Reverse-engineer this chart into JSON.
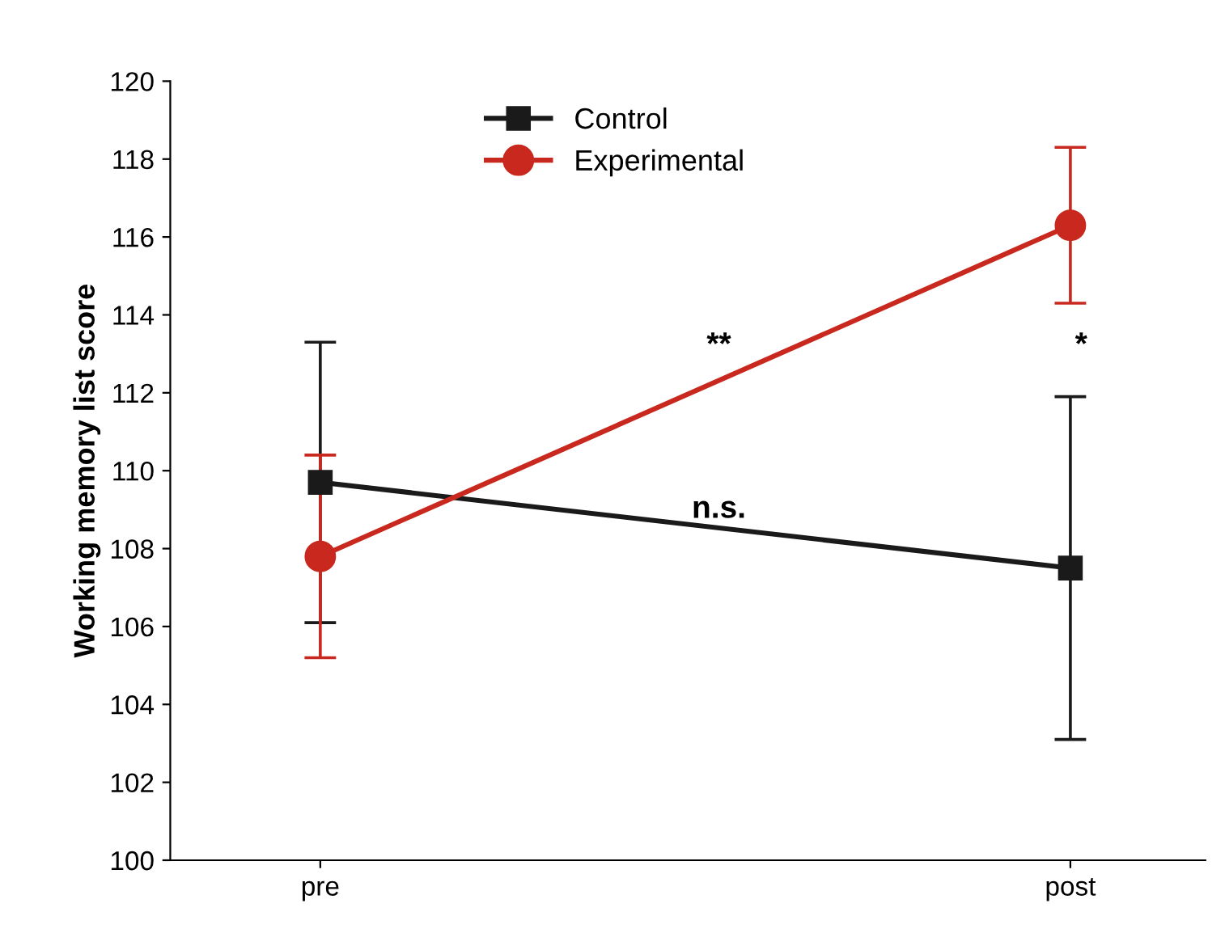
{
  "chart_data": {
    "type": "line",
    "ylabel": "Working memory list score",
    "categories": [
      "pre",
      "post"
    ],
    "series": [
      {
        "name": "Control",
        "color": "#1a1a1a",
        "marker": "square",
        "values": [
          109.7,
          107.5
        ],
        "errors": [
          3.6,
          4.4
        ]
      },
      {
        "name": "Experimental",
        "color": "#c8281e",
        "marker": "circle",
        "values": [
          107.8,
          116.3
        ],
        "errors": [
          2.6,
          2.0
        ]
      }
    ],
    "ylim": [
      100,
      120
    ],
    "yticks": [
      100,
      102,
      104,
      106,
      108,
      110,
      112,
      114,
      116,
      118,
      120
    ],
    "annotations": [
      "**",
      "n.s.",
      "*"
    ],
    "legend": "top",
    "grid": false
  }
}
